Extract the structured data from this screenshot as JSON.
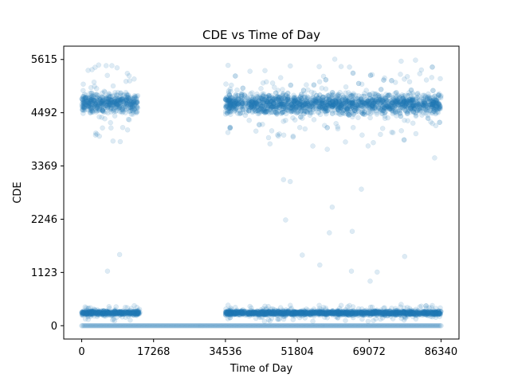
{
  "chart_data": {
    "type": "scatter",
    "title": "CDE vs Time of Day",
    "xlabel": "Time of Day",
    "ylabel": "CDE",
    "xlim": [
      -4317,
      90657
    ],
    "ylim": [
      -281,
      5896
    ],
    "xticks": [
      0,
      17268,
      34536,
      51804,
      69072,
      86340
    ],
    "yticks": [
      0,
      1123,
      2246,
      3369,
      4492,
      5615
    ],
    "grid": false,
    "legend": "none",
    "point_color": "#1f77b4",
    "point_alpha": 0.15,
    "series": [
      {
        "clusters": [
          {
            "x_range": [
              0,
              86340
            ],
            "y_mean": 0,
            "y_spread": 0
          },
          {
            "x_range": [
              0,
              14000
            ],
            "y_mean": 270,
            "y_spread": 30
          },
          {
            "x_range": [
              34500,
              86340
            ],
            "y_mean": 270,
            "y_spread": 30
          },
          {
            "x_range": [
              0,
              13500
            ],
            "y_mean": 4700,
            "y_spread": 150
          },
          {
            "x_range": [
              34500,
              86340
            ],
            "y_mean": 4680,
            "y_spread": 150
          }
        ],
        "outliers": [
          {
            "x": 6200,
            "y": 1150
          },
          {
            "x": 9100,
            "y": 1500
          },
          {
            "x": 48500,
            "y": 3080
          },
          {
            "x": 50100,
            "y": 3040
          },
          {
            "x": 49000,
            "y": 2230
          },
          {
            "x": 50800,
            "y": 4000
          },
          {
            "x": 53000,
            "y": 1490
          },
          {
            "x": 57200,
            "y": 1280
          },
          {
            "x": 59000,
            "y": 3720
          },
          {
            "x": 59500,
            "y": 1960
          },
          {
            "x": 60200,
            "y": 2500
          },
          {
            "x": 64800,
            "y": 1150
          },
          {
            "x": 65000,
            "y": 1990
          },
          {
            "x": 67200,
            "y": 2880
          },
          {
            "x": 69300,
            "y": 940
          },
          {
            "x": 71000,
            "y": 1130
          },
          {
            "x": 77600,
            "y": 1460
          },
          {
            "x": 84800,
            "y": 3540
          },
          {
            "x": 74500,
            "y": 4080
          },
          {
            "x": 60800,
            "y": 5620
          },
          {
            "x": 80200,
            "y": 5600
          },
          {
            "x": 3200,
            "y": 5450
          },
          {
            "x": 8500,
            "y": 5440
          }
        ]
      }
    ]
  }
}
